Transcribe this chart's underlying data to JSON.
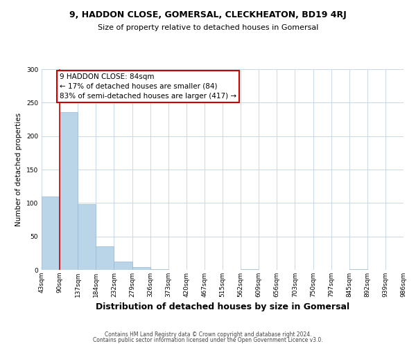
{
  "title": "9, HADDON CLOSE, GOMERSAL, CLECKHEATON, BD19 4RJ",
  "subtitle": "Size of property relative to detached houses in Gomersal",
  "xlabel": "Distribution of detached houses by size in Gomersal",
  "ylabel": "Number of detached properties",
  "bar_values": [
    110,
    236,
    98,
    35,
    12,
    4,
    1,
    0,
    0,
    0,
    0,
    1,
    0,
    0,
    0,
    0,
    0,
    1,
    0,
    0
  ],
  "tick_labels": [
    "43sqm",
    "90sqm",
    "137sqm",
    "184sqm",
    "232sqm",
    "279sqm",
    "326sqm",
    "373sqm",
    "420sqm",
    "467sqm",
    "515sqm",
    "562sqm",
    "609sqm",
    "656sqm",
    "703sqm",
    "750sqm",
    "797sqm",
    "845sqm",
    "892sqm",
    "939sqm",
    "986sqm"
  ],
  "bar_color": "#bad4e8",
  "bar_edge_color": "#9ab8d4",
  "red_line_color": "#cc0000",
  "red_line_x": 1,
  "annotation_text_line1": "9 HADDON CLOSE: 84sqm",
  "annotation_text_line2": "← 17% of detached houses are smaller (84)",
  "annotation_text_line3": "83% of semi-detached houses are larger (417) →",
  "ylim": [
    0,
    300
  ],
  "yticks": [
    0,
    50,
    100,
    150,
    200,
    250,
    300
  ],
  "footer1": "Contains HM Land Registry data © Crown copyright and database right 2024.",
  "footer2": "Contains public sector information licensed under the Open Government Licence v3.0.",
  "bg_color": "#ffffff",
  "grid_color": "#c8d8e8",
  "annotation_bg": "#ffffff",
  "annotation_edge": "#cc0000",
  "title_fontsize": 9,
  "subtitle_fontsize": 8,
  "xlabel_fontsize": 9,
  "ylabel_fontsize": 7.5,
  "tick_fontsize": 6.5,
  "footer_fontsize": 5.5
}
